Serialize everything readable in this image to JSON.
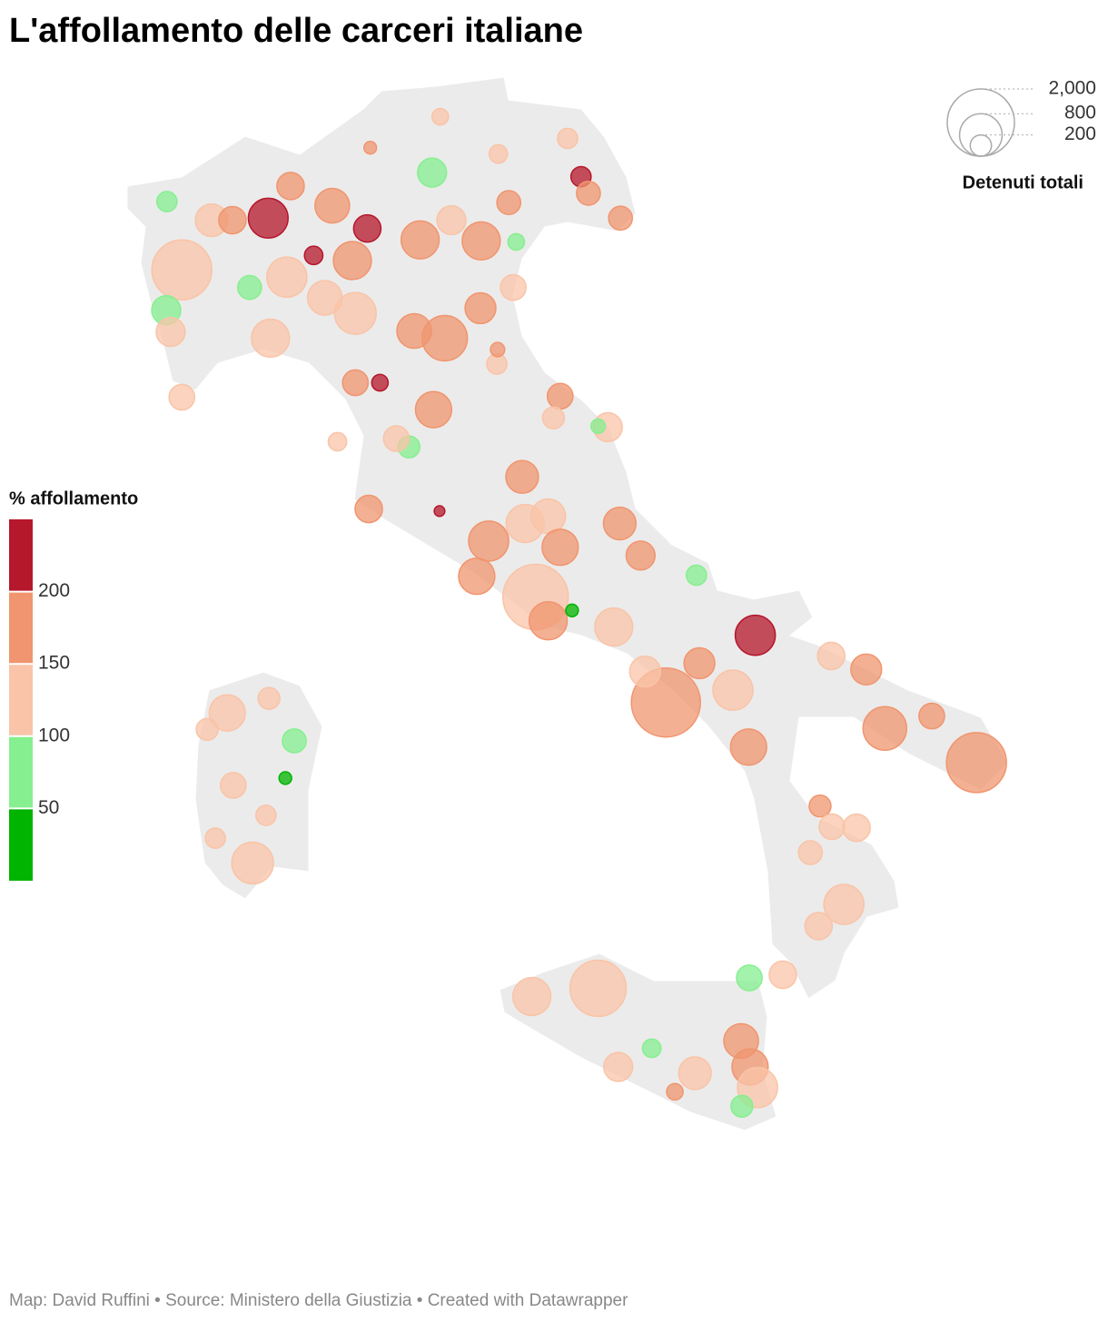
{
  "chart_data": {
    "type": "bubble-map",
    "title": "L'affollamento delle carceri italiane",
    "footer": "Map: David Ruffini • Source: Ministero della Giustizia • Created with Datawrapper",
    "color_legend": {
      "title": "% affollamento",
      "ticks": [
        50,
        100,
        150,
        200
      ],
      "colors": [
        "#00b400",
        "#86ef90",
        "#f9c4a8",
        "#f0956f",
        "#b5172b"
      ]
    },
    "size_legend": {
      "title": "Detenuti totali",
      "values": [
        {
          "value": 2000,
          "label": "2,000"
        },
        800,
        200
      ]
    },
    "points": {
      "lon": [
        7.51,
        8.67,
        8.97,
        9.53,
        10.0,
        10.87,
        10.71,
        11.53,
        11.13,
        9.8,
        9.84,
        11.04,
        10.63,
        9.43,
        8.7,
        8.92,
        7.3,
        7.36,
        8.42,
        7.91,
        8.19,
        9.28,
        11.52,
        11.96,
        12.87,
        12.97,
        13.4,
        12.69,
        11.9,
        12.0,
        10.89,
        9.84,
        10.17,
        10.56,
        10.02,
        12.08,
        11.63,
        12.12,
        12.43,
        12.59,
        12.26,
        12.43,
        11.47,
        12.75,
        13.31,
        13.67,
        13.39,
        12.59,
        13.23,
        13.1,
        14.42,
        14.01,
        13.73,
        14.46,
        14.91,
        15.21,
        15.12,
        16.7,
        16.95,
        18.18,
        17.58,
        16.23,
        16.08,
        16.24,
        16.57,
        15.95,
        16.4,
        16.06,
        15.13,
        15.58,
        13.1,
        12.21,
        15.02,
        15.14,
        15.24,
        14.4,
        13.37,
        13.82,
        15.03,
        14.13,
        8.46,
        8.12,
        9.02,
        8.2,
        8.9,
        8.68,
        8.64,
        7.96,
        7.85,
        7.51,
        9.6,
        7.31,
        10.97,
        10.98,
        10.04,
        11.76,
        10.39,
        11.74,
        11.75,
        12.5
      ],
      "lat": [
        45.04,
        45.54,
        45.85,
        45.66,
        45.44,
        45.98,
        45.33,
        45.32,
        45.52,
        45.13,
        44.62,
        44.38,
        44.45,
        44.77,
        44.38,
        44.97,
        44.65,
        44.44,
        44.87,
        45.52,
        45.52,
        45.18,
        44.67,
        44.87,
        45.94,
        45.78,
        45.54,
        46.31,
        45.69,
        45.31,
        43.69,
        43.95,
        43.95,
        43.33,
        42.73,
        43.04,
        42.42,
        42.59,
        42.66,
        42.36,
        41.88,
        41.65,
        42.08,
        41.75,
        41.59,
        42.28,
        42.59,
        43.82,
        43.52,
        43.53,
        42.09,
        40.86,
        41.16,
        41.24,
        40.98,
        41.51,
        40.43,
        41.18,
        40.61,
        40.28,
        40.73,
        41.31,
        39.86,
        39.66,
        39.65,
        39.41,
        38.91,
        38.7,
        38.2,
        38.23,
        38.1,
        38.02,
        37.59,
        37.34,
        37.14,
        37.28,
        37.34,
        37.52,
        36.96,
        37.1,
        39.31,
        40.76,
        40.49,
        40.06,
        40.13,
        40.9,
        39.77,
        39.55,
        40.6,
        43.81,
        43.38,
        45.7,
        42.71,
        46.52,
        46.22,
        46.16,
        43.41,
        44.13,
        44.27,
        43.61
      ],
      "detenuti": [
        1590,
        700,
        330,
        530,
        330,
        370,
        640,
        640,
        370,
        640,
        770,
        910,
        530,
        530,
        640,
        710,
        370,
        370,
        250,
        470,
        330,
        150,
        420,
        290,
        180,
        250,
        250,
        180,
        250,
        120,
        580,
        290,
        120,
        210,
        330,
        470,
        710,
        640,
        530,
        580,
        1890,
        640,
        580,
        70,
        640,
        370,
        470,
        290,
        370,
        90,
        180,
        2110,
        420,
        420,
        710,
        710,
        580,
        420,
        840,
        1590,
        290,
        330,
        210,
        290,
        330,
        250,
        710,
        330,
        290,
        330,
        1400,
        640,
        530,
        580,
        710,
        470,
        370,
        150,
        210,
        120,
        770,
        580,
        250,
        290,
        70,
        210,
        180,
        180,
        210,
        290,
        150,
        180,
        50,
        120,
        70,
        150,
        290,
        180,
        90,
        210
      ],
      "affollamento": [
        130,
        220,
        170,
        165,
        230,
        85,
        170,
        165,
        130,
        175,
        140,
        180,
        170,
        130,
        135,
        135,
        90,
        120,
        90,
        125,
        165,
        220,
        160,
        130,
        215,
        160,
        160,
        120,
        155,
        90,
        170,
        165,
        225,
        90,
        160,
        160,
        170,
        125,
        125,
        170,
        145,
        160,
        165,
        40,
        130,
        165,
        165,
        165,
        130,
        85,
        85,
        160,
        135,
        165,
        135,
        215,
        165,
        165,
        170,
        165,
        160,
        130,
        160,
        130,
        130,
        130,
        130,
        130,
        90,
        130,
        130,
        125,
        160,
        165,
        130,
        130,
        130,
        85,
        85,
        165,
        130,
        130,
        90,
        130,
        40,
        130,
        130,
        130,
        125,
        125,
        125,
        85,
        215,
        125,
        160,
        125,
        125,
        125,
        165,
        125
      ]
    }
  }
}
